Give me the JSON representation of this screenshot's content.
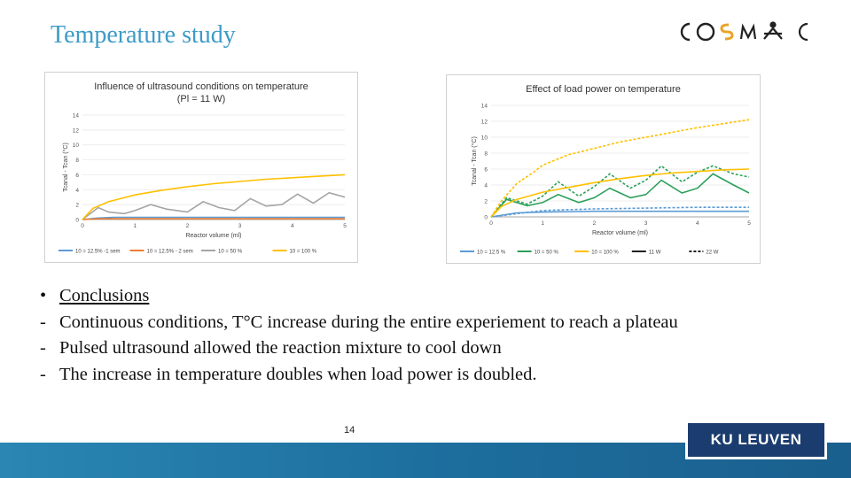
{
  "slide": {
    "title": "Temperature study",
    "page_number": "14",
    "logo_text": "COSMIC",
    "footer_logo": "KU LEUVEN"
  },
  "bullets": [
    {
      "marker": "•",
      "text": "Conclusions",
      "underline": true
    },
    {
      "marker": "-",
      "text": "Continuous conditions, T°C increase during the entire experiement to reach a plateau",
      "underline": false
    },
    {
      "marker": "-",
      "text": "Pulsed ultrasound allowed the reaction mixture to cool down",
      "underline": false
    },
    {
      "marker": "-",
      "text": "The increase in temperature doubles when load power is doubled.",
      "underline": false
    }
  ],
  "colors": {
    "title": "#3d9bc7",
    "blue": "#5b9bd5",
    "orange": "#ed7d31",
    "gray": "#a5a5a5",
    "yellow": "#ffc000",
    "green": "#2ca05a",
    "black": "#000000"
  },
  "chart_data": [
    {
      "type": "line",
      "title": "Influence of ultrasound conditions on temperature",
      "subtitle": "(Pl = 11 W)",
      "xlabel": "Reactor volume (ml)",
      "ylabel": "Tcanal - Tcan (°C)",
      "xlim": [
        0,
        5
      ],
      "ylim": [
        0,
        14
      ],
      "xticks": [
        0,
        1,
        2,
        3,
        4,
        5
      ],
      "yticks": [
        0,
        2,
        4,
        6,
        8,
        10,
        12,
        14
      ],
      "legend_position": "bottom",
      "series": [
        {
          "name": "10 = 12.5% -1 sem",
          "color": "#5b9bd5",
          "dash": false,
          "x": [
            0,
            0.3,
            0.6,
            1,
            1.5,
            2,
            2.5,
            3,
            3.5,
            4,
            4.5,
            5
          ],
          "y": [
            0,
            0.2,
            0.3,
            0.3,
            0.3,
            0.3,
            0.3,
            0.3,
            0.3,
            0.3,
            0.3,
            0.3
          ]
        },
        {
          "name": "10 = 12.5% - 2 sem",
          "color": "#ed7d31",
          "dash": false,
          "x": [
            0,
            0.3,
            0.6,
            1,
            1.5,
            2,
            2.5,
            3,
            3.5,
            4,
            4.5,
            5
          ],
          "y": [
            0,
            0.1,
            0.1,
            0.1,
            0.1,
            0.1,
            0.1,
            0.1,
            0.1,
            0.1,
            0.1,
            0.1
          ]
        },
        {
          "name": "10 = 50 %",
          "color": "#a5a5a5",
          "dash": false,
          "x": [
            0,
            0.3,
            0.5,
            0.8,
            1,
            1.3,
            1.6,
            2,
            2.3,
            2.6,
            2.9,
            3.2,
            3.5,
            3.8,
            4.1,
            4.4,
            4.7,
            5
          ],
          "y": [
            0,
            1.6,
            1.0,
            0.8,
            1.2,
            2.0,
            1.4,
            1.0,
            2.4,
            1.6,
            1.2,
            2.8,
            1.8,
            2.0,
            3.4,
            2.2,
            3.6,
            3.0
          ]
        },
        {
          "name": "10 = 100 %",
          "color": "#ffc000",
          "dash": false,
          "x": [
            0,
            0.2,
            0.5,
            1,
            1.5,
            2,
            2.5,
            3,
            3.5,
            4,
            4.5,
            5
          ],
          "y": [
            0,
            1.5,
            2.4,
            3.3,
            3.9,
            4.4,
            4.8,
            5.1,
            5.4,
            5.6,
            5.8,
            6.0
          ]
        }
      ]
    },
    {
      "type": "line",
      "title": "Effect of load power on temperature",
      "xlabel": "Reactor volume (ml)",
      "ylabel": "Tcanal - Tcan (°C)",
      "xlim": [
        0,
        5
      ],
      "ylim": [
        0,
        14
      ],
      "xticks": [
        0,
        1,
        2,
        3,
        4,
        5
      ],
      "yticks": [
        0,
        2,
        4,
        6,
        8,
        10,
        12,
        14
      ],
      "legend_position": "bottom",
      "series": [
        {
          "name": "10 = 12.5 %",
          "color": "#5b9bd5",
          "dash": false,
          "x": [
            0,
            0.5,
            1,
            2,
            3,
            4,
            5
          ],
          "y": [
            0,
            0.5,
            0.6,
            0.7,
            0.7,
            0.7,
            0.7
          ]
        },
        {
          "name": "10 = 12.5 %",
          "color": "#5b9bd5",
          "dash": true,
          "x": [
            0,
            0.5,
            1,
            2,
            3,
            4,
            5
          ],
          "y": [
            0,
            0.4,
            0.8,
            1.0,
            1.1,
            1.2,
            1.2
          ]
        },
        {
          "name": "10 = 50 %",
          "color": "#2ca05a",
          "dash": false,
          "x": [
            0,
            0.3,
            0.7,
            1,
            1.3,
            1.7,
            2,
            2.3,
            2.7,
            3,
            3.3,
            3.7,
            4,
            4.3,
            4.7,
            5
          ],
          "y": [
            0,
            2.2,
            1.4,
            1.8,
            2.8,
            1.8,
            2.4,
            3.6,
            2.4,
            2.8,
            4.6,
            3.0,
            3.6,
            5.4,
            4.0,
            3.0
          ]
        },
        {
          "name": "10 = 50 %",
          "color": "#2ca05a",
          "dash": true,
          "x": [
            0,
            0.3,
            0.7,
            1,
            1.3,
            1.7,
            2,
            2.3,
            2.7,
            3,
            3.3,
            3.7,
            4,
            4.3,
            4.7,
            5
          ],
          "y": [
            0,
            2.4,
            1.6,
            2.6,
            4.4,
            2.6,
            3.8,
            5.4,
            3.6,
            4.6,
            6.4,
            4.4,
            5.6,
            6.4,
            5.4,
            5.0
          ]
        },
        {
          "name": "10 = 100 %",
          "color": "#ffc000",
          "dash": false,
          "x": [
            0,
            0.2,
            0.5,
            1,
            1.5,
            2,
            2.5,
            3,
            3.5,
            4,
            4.5,
            5
          ],
          "y": [
            0,
            1.3,
            2.2,
            3.1,
            3.7,
            4.3,
            4.8,
            5.2,
            5.5,
            5.7,
            5.9,
            6.0
          ]
        },
        {
          "name": "10 = 100 %",
          "color": "#ffc000",
          "dash": true,
          "x": [
            0,
            0.2,
            0.5,
            0.8,
            1,
            1.5,
            2,
            2.5,
            3,
            3.5,
            4,
            4.5,
            5
          ],
          "y": [
            0,
            2.0,
            4.2,
            5.5,
            6.5,
            7.8,
            8.6,
            9.4,
            10.0,
            10.6,
            11.2,
            11.7,
            12.2
          ]
        }
      ],
      "legend_extra": [
        "11 W",
        "22 W"
      ]
    }
  ]
}
